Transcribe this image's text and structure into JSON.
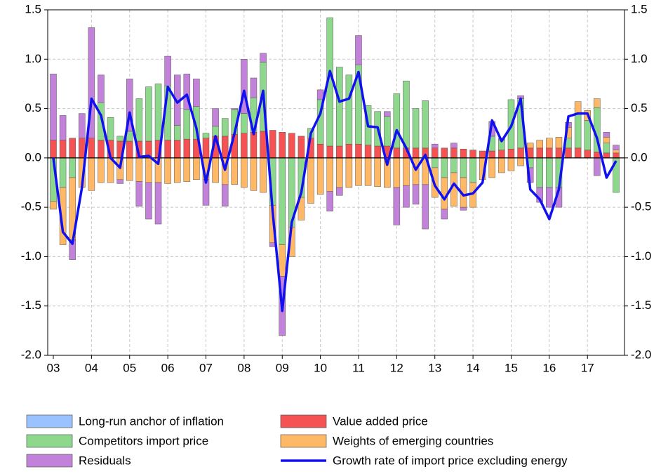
{
  "chart_data": {
    "type": "bar",
    "stacked": true,
    "categories": [
      "03",
      null,
      null,
      null,
      "04",
      null,
      null,
      null,
      "05",
      null,
      null,
      null,
      "06",
      null,
      null,
      null,
      "07",
      null,
      null,
      null,
      "08",
      null,
      null,
      null,
      "09",
      null,
      null,
      null,
      "10",
      null,
      null,
      null,
      "11",
      null,
      null,
      null,
      "12",
      null,
      null,
      null,
      "13",
      null,
      null,
      null,
      "14",
      null,
      null,
      null,
      "15",
      null,
      null,
      null,
      "16",
      null,
      null,
      null,
      "17",
      null,
      null,
      null
    ],
    "series": [
      {
        "name": "Long-run anchor of inflation",
        "color": "#99c2ff",
        "type": "bar",
        "values": [
          0,
          0,
          0,
          0,
          0,
          0,
          0,
          0,
          0,
          0,
          0,
          0,
          0,
          0,
          0,
          0,
          0,
          0,
          0,
          0,
          0,
          0,
          0,
          0,
          0,
          0,
          0,
          0,
          0,
          0,
          0,
          0,
          0,
          0,
          0,
          0,
          0,
          0,
          0,
          0,
          0,
          0,
          0,
          0,
          0,
          0,
          0,
          0,
          0,
          0,
          0,
          0,
          0,
          0,
          0,
          0,
          0,
          0,
          0,
          0
        ]
      },
      {
        "name": "Value added price",
        "color": "#f55353",
        "type": "bar",
        "values": [
          0.18,
          0.18,
          0.2,
          0.2,
          0.2,
          0.18,
          0.18,
          0.17,
          0.17,
          0.17,
          0.17,
          0.18,
          0.18,
          0.18,
          0.19,
          0.19,
          0.2,
          0.22,
          0.22,
          0.24,
          0.25,
          0.26,
          0.27,
          0.28,
          0.26,
          0.25,
          0.22,
          0.2,
          0.14,
          0.12,
          0.12,
          0.14,
          0.14,
          0.13,
          0.12,
          0.12,
          0.1,
          0.1,
          0.1,
          0.1,
          0.1,
          0.1,
          0.1,
          0.09,
          0.08,
          0.07,
          0.07,
          0.08,
          0.09,
          0.1,
          0.1,
          0.1,
          0.1,
          0.1,
          0.1,
          0.1,
          0.08,
          0.06,
          0.05,
          0.05
        ]
      },
      {
        "name": "Competitors import price",
        "color": "#8ed88e",
        "type": "bar",
        "values": [
          -0.44,
          -0.3,
          -0.2,
          0,
          0,
          0.38,
          0.23,
          0.05,
          0.1,
          0.43,
          0.55,
          0.57,
          0.55,
          0.15,
          0.3,
          0.33,
          0.05,
          0.1,
          0.18,
          0.25,
          0.2,
          0.35,
          0.7,
          -0.48,
          -0.88,
          -0.7,
          -0.4,
          0.1,
          0.45,
          1.3,
          0.8,
          0.7,
          0.8,
          0.4,
          0.35,
          0.3,
          0.55,
          0.68,
          0.4,
          0.48,
          -0.1,
          -0.2,
          -0.15,
          -0.2,
          -0.25,
          0,
          0.15,
          0.1,
          0.5,
          0.5,
          -0.1,
          -0.3,
          -0.3,
          -0.3,
          0.1,
          0.35,
          0.3,
          0.45,
          0.1,
          -0.35
        ]
      },
      {
        "name": "Weights of emerging countries",
        "color": "#ffb866",
        "type": "bar",
        "values": [
          -0.08,
          -0.58,
          -0.63,
          -0.3,
          -0.33,
          -0.25,
          -0.25,
          -0.22,
          -0.23,
          -0.24,
          -0.25,
          -0.25,
          -0.26,
          -0.25,
          -0.24,
          -0.22,
          -0.22,
          -0.25,
          -0.27,
          -0.27,
          -0.3,
          -0.33,
          -0.35,
          -0.38,
          -0.32,
          -0.3,
          -0.23,
          -0.46,
          -0.37,
          -0.34,
          -0.3,
          -0.3,
          -0.28,
          -0.28,
          -0.29,
          -0.3,
          -0.3,
          -0.28,
          -0.27,
          -0.27,
          -0.3,
          -0.32,
          -0.34,
          -0.3,
          -0.25,
          -0.22,
          -0.2,
          -0.15,
          -0.13,
          -0.08,
          0.05,
          0.08,
          0.1,
          0.11,
          0.11,
          0.12,
          0.1,
          0.09,
          0.06,
          0.03
        ]
      },
      {
        "name": "Residuals",
        "color": "#c282d9",
        "type": "bar",
        "values": [
          0.67,
          0.25,
          -0.2,
          0.25,
          1.12,
          0.28,
          0,
          -0.04,
          0.53,
          -0.25,
          -0.37,
          -0.42,
          0.3,
          0.51,
          0.36,
          0.28,
          -0.26,
          0.18,
          -0.22,
          0.01,
          0.55,
          0.2,
          0.09,
          -0.04,
          -0.6,
          0,
          0,
          0,
          0.1,
          -0.2,
          -0.08,
          0,
          0.3,
          0,
          0,
          0.05,
          -0.38,
          -0.22,
          -0.2,
          -0.45,
          0.04,
          -0.1,
          0.05,
          -0.03,
          0,
          0,
          0.15,
          0.02,
          0,
          0.03,
          -0.15,
          -0.15,
          -0.2,
          -0.2,
          0.05,
          0,
          0,
          -0.18,
          0.05,
          0.05
        ]
      },
      {
        "name": "Growth rate of import price excluding energy",
        "color": "#1010f0",
        "type": "line",
        "values": [
          0,
          -0.75,
          -0.87,
          -0.3,
          0.6,
          0.43,
          0,
          -0.1,
          0.46,
          0.01,
          0.02,
          -0.06,
          0.72,
          0.56,
          0.64,
          0.3,
          -0.25,
          0.22,
          -0.12,
          0.25,
          0.68,
          0.24,
          0.68,
          -0.55,
          -1.55,
          -0.65,
          -0.35,
          0.25,
          0.45,
          0.88,
          0.57,
          0.6,
          0.87,
          0.32,
          0.31,
          -0.07,
          0.28,
          0.1,
          -0.12,
          0.03,
          -0.28,
          -0.42,
          -0.26,
          -0.38,
          -0.36,
          -0.25,
          0.38,
          0.17,
          0.32,
          0.6,
          -0.32,
          -0.42,
          -0.62,
          -0.32,
          0.42,
          0.45,
          0.45,
          0.2,
          -0.2,
          -0.03
        ]
      }
    ],
    "ylim": [
      -2.0,
      1.5
    ],
    "yticks": [
      {
        "value": -2.0,
        "label": "-2.0"
      },
      -1.5,
      {
        "value": -1.0,
        "label": "-1.0"
      },
      -0.5,
      {
        "value": 0.0,
        "label": "0.0"
      },
      0.5,
      {
        "value": 1.0,
        "label": "1.0"
      },
      1.5
    ],
    "y2lim": [
      -2.0,
      1.5
    ],
    "y2ticks": [
      {
        "value": -2.0,
        "label": "-2.0"
      },
      -1.5,
      {
        "value": -1.0,
        "label": "-1.0"
      },
      -0.5,
      {
        "value": 0.0,
        "label": "0.0"
      },
      0.5,
      {
        "value": 1.0,
        "label": "1.0"
      },
      1.5
    ],
    "grid": true,
    "legend": "bottom"
  }
}
